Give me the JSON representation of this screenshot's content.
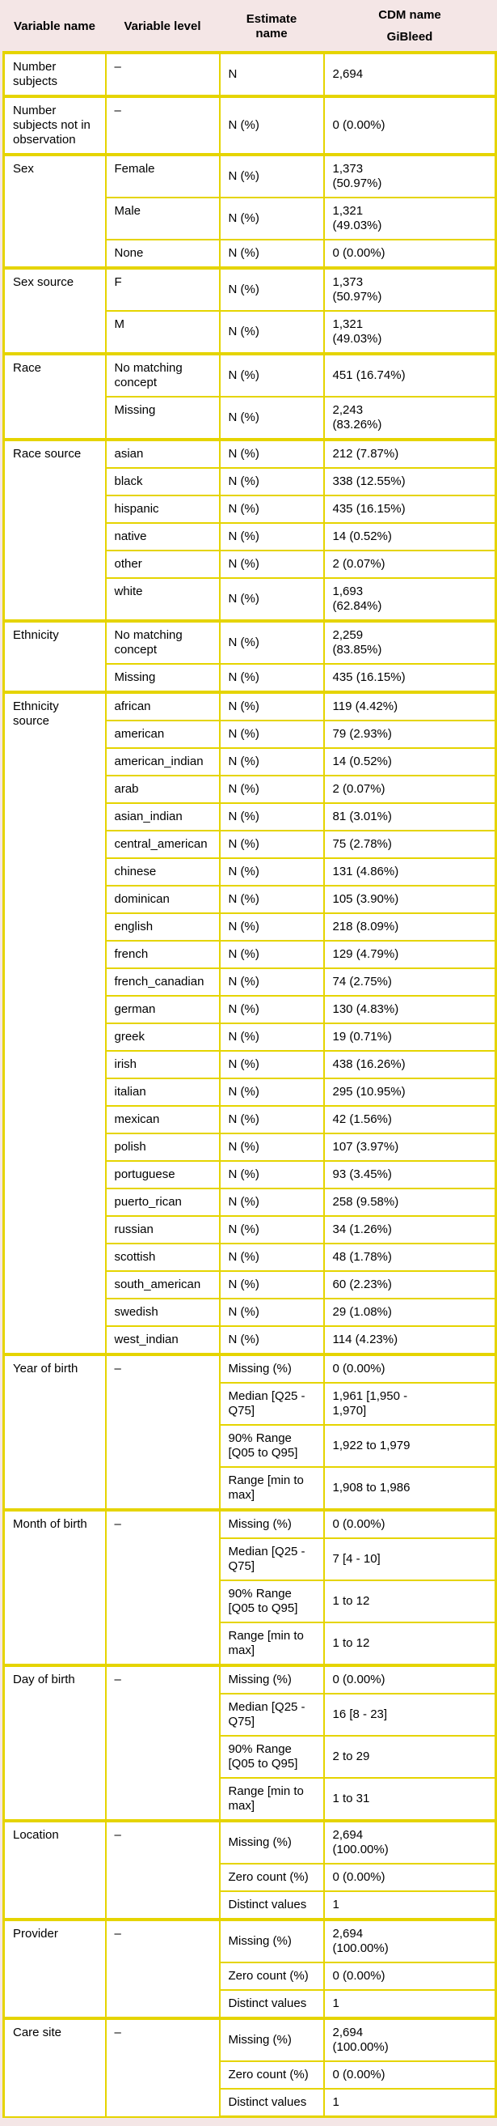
{
  "colors": {
    "border": "#e5d400",
    "page_bg": "#f4e6e6",
    "cell_bg": "#ffffff",
    "text": "#000000"
  },
  "header": {
    "variable_name": "Variable name",
    "variable_level": "Variable level",
    "estimate_name_line1": "Estimate",
    "estimate_name_line2": "name",
    "cdm_name": "CDM name",
    "cdm_database": "GiBleed"
  },
  "groups": [
    {
      "variable": "Number subjects",
      "levels": [
        {
          "level": "–",
          "rows": [
            {
              "estimate": "N",
              "value": "2,694"
            }
          ]
        }
      ]
    },
    {
      "variable": "Number subjects not in observation",
      "levels": [
        {
          "level": "–",
          "rows": [
            {
              "estimate": "N (%)",
              "value": "0 (0.00%)"
            }
          ]
        }
      ]
    },
    {
      "variable": "Sex",
      "levels": [
        {
          "level": "Female",
          "rows": [
            {
              "estimate": "N (%)",
              "value": "1,373 (50.97%)"
            }
          ]
        },
        {
          "level": "Male",
          "rows": [
            {
              "estimate": "N (%)",
              "value": "1,321 (49.03%)"
            }
          ]
        },
        {
          "level": "None",
          "rows": [
            {
              "estimate": "N (%)",
              "value": "0 (0.00%)"
            }
          ]
        }
      ]
    },
    {
      "variable": "Sex source",
      "levels": [
        {
          "level": "F",
          "rows": [
            {
              "estimate": "N (%)",
              "value": "1,373 (50.97%)"
            }
          ]
        },
        {
          "level": "M",
          "rows": [
            {
              "estimate": "N (%)",
              "value": "1,321 (49.03%)"
            }
          ]
        }
      ]
    },
    {
      "variable": "Race",
      "levels": [
        {
          "level": "No matching concept",
          "rows": [
            {
              "estimate": "N (%)",
              "value": "451 (16.74%)"
            }
          ]
        },
        {
          "level": "Missing",
          "rows": [
            {
              "estimate": "N (%)",
              "value": "2,243 (83.26%)"
            }
          ]
        }
      ]
    },
    {
      "variable": "Race source",
      "levels": [
        {
          "level": "asian",
          "rows": [
            {
              "estimate": "N (%)",
              "value": "212 (7.87%)"
            }
          ]
        },
        {
          "level": "black",
          "rows": [
            {
              "estimate": "N (%)",
              "value": "338 (12.55%)"
            }
          ]
        },
        {
          "level": "hispanic",
          "rows": [
            {
              "estimate": "N (%)",
              "value": "435 (16.15%)"
            }
          ]
        },
        {
          "level": "native",
          "rows": [
            {
              "estimate": "N (%)",
              "value": "14 (0.52%)"
            }
          ]
        },
        {
          "level": "other",
          "rows": [
            {
              "estimate": "N (%)",
              "value": "2 (0.07%)"
            }
          ]
        },
        {
          "level": "white",
          "rows": [
            {
              "estimate": "N (%)",
              "value": "1,693 (62.84%)"
            }
          ]
        }
      ]
    },
    {
      "variable": "Ethnicity",
      "levels": [
        {
          "level": "No matching concept",
          "rows": [
            {
              "estimate": "N (%)",
              "value": "2,259 (83.85%)"
            }
          ]
        },
        {
          "level": "Missing",
          "rows": [
            {
              "estimate": "N (%)",
              "value": "435 (16.15%)"
            }
          ]
        }
      ]
    },
    {
      "variable": "Ethnicity source",
      "levels": [
        {
          "level": "african",
          "rows": [
            {
              "estimate": "N (%)",
              "value": "119 (4.42%)"
            }
          ]
        },
        {
          "level": "american",
          "rows": [
            {
              "estimate": "N (%)",
              "value": "79 (2.93%)"
            }
          ]
        },
        {
          "level": "american_indian",
          "rows": [
            {
              "estimate": "N (%)",
              "value": "14 (0.52%)"
            }
          ]
        },
        {
          "level": "arab",
          "rows": [
            {
              "estimate": "N (%)",
              "value": "2 (0.07%)"
            }
          ]
        },
        {
          "level": "asian_indian",
          "rows": [
            {
              "estimate": "N (%)",
              "value": "81 (3.01%)"
            }
          ]
        },
        {
          "level": "central_american",
          "rows": [
            {
              "estimate": "N (%)",
              "value": "75 (2.78%)"
            }
          ]
        },
        {
          "level": "chinese",
          "rows": [
            {
              "estimate": "N (%)",
              "value": "131 (4.86%)"
            }
          ]
        },
        {
          "level": "dominican",
          "rows": [
            {
              "estimate": "N (%)",
              "value": "105 (3.90%)"
            }
          ]
        },
        {
          "level": "english",
          "rows": [
            {
              "estimate": "N (%)",
              "value": "218 (8.09%)"
            }
          ]
        },
        {
          "level": "french",
          "rows": [
            {
              "estimate": "N (%)",
              "value": "129 (4.79%)"
            }
          ]
        },
        {
          "level": "french_canadian",
          "rows": [
            {
              "estimate": "N (%)",
              "value": "74 (2.75%)"
            }
          ]
        },
        {
          "level": "german",
          "rows": [
            {
              "estimate": "N (%)",
              "value": "130 (4.83%)"
            }
          ]
        },
        {
          "level": "greek",
          "rows": [
            {
              "estimate": "N (%)",
              "value": "19 (0.71%)"
            }
          ]
        },
        {
          "level": "irish",
          "rows": [
            {
              "estimate": "N (%)",
              "value": "438 (16.26%)"
            }
          ]
        },
        {
          "level": "italian",
          "rows": [
            {
              "estimate": "N (%)",
              "value": "295 (10.95%)"
            }
          ]
        },
        {
          "level": "mexican",
          "rows": [
            {
              "estimate": "N (%)",
              "value": "42 (1.56%)"
            }
          ]
        },
        {
          "level": "polish",
          "rows": [
            {
              "estimate": "N (%)",
              "value": "107 (3.97%)"
            }
          ]
        },
        {
          "level": "portuguese",
          "rows": [
            {
              "estimate": "N (%)",
              "value": "93 (3.45%)"
            }
          ]
        },
        {
          "level": "puerto_rican",
          "rows": [
            {
              "estimate": "N (%)",
              "value": "258 (9.58%)"
            }
          ]
        },
        {
          "level": "russian",
          "rows": [
            {
              "estimate": "N (%)",
              "value": "34 (1.26%)"
            }
          ]
        },
        {
          "level": "scottish",
          "rows": [
            {
              "estimate": "N (%)",
              "value": "48 (1.78%)"
            }
          ]
        },
        {
          "level": "south_american",
          "rows": [
            {
              "estimate": "N (%)",
              "value": "60 (2.23%)"
            }
          ]
        },
        {
          "level": "swedish",
          "rows": [
            {
              "estimate": "N (%)",
              "value": "29 (1.08%)"
            }
          ]
        },
        {
          "level": "west_indian",
          "rows": [
            {
              "estimate": "N (%)",
              "value": "114 (4.23%)"
            }
          ]
        }
      ]
    },
    {
      "variable": "Year of birth",
      "levels": [
        {
          "level": "–",
          "rows": [
            {
              "estimate": "Missing (%)",
              "value": "0 (0.00%)"
            },
            {
              "estimate": "Median [Q25 - Q75]",
              "value": "1,961 [1,950 - 1,970]"
            },
            {
              "estimate": "90% Range [Q05 to Q95]",
              "value": "1,922 to 1,979"
            },
            {
              "estimate": "Range [min to max]",
              "value": "1,908 to 1,986"
            }
          ]
        }
      ]
    },
    {
      "variable": "Month of birth",
      "levels": [
        {
          "level": "–",
          "rows": [
            {
              "estimate": "Missing (%)",
              "value": "0 (0.00%)"
            },
            {
              "estimate": "Median [Q25 - Q75]",
              "value": "7 [4 - 10]"
            },
            {
              "estimate": "90% Range [Q05 to Q95]",
              "value": "1 to 12"
            },
            {
              "estimate": "Range [min to max]",
              "value": "1 to 12"
            }
          ]
        }
      ]
    },
    {
      "variable": "Day of birth",
      "levels": [
        {
          "level": "–",
          "rows": [
            {
              "estimate": "Missing (%)",
              "value": "0 (0.00%)"
            },
            {
              "estimate": "Median [Q25 - Q75]",
              "value": "16 [8 - 23]"
            },
            {
              "estimate": "90% Range [Q05 to Q95]",
              "value": "2 to 29"
            },
            {
              "estimate": "Range [min to max]",
              "value": "1 to 31"
            }
          ]
        }
      ]
    },
    {
      "variable": "Location",
      "levels": [
        {
          "level": "–",
          "rows": [
            {
              "estimate": "Missing (%)",
              "value": "2,694 (100.00%)"
            },
            {
              "estimate": "Zero count (%)",
              "value": "0 (0.00%)"
            },
            {
              "estimate": "Distinct values",
              "value": "1"
            }
          ]
        }
      ]
    },
    {
      "variable": "Provider",
      "levels": [
        {
          "level": "–",
          "rows": [
            {
              "estimate": "Missing (%)",
              "value": "2,694 (100.00%)"
            },
            {
              "estimate": "Zero count (%)",
              "value": "0 (0.00%)"
            },
            {
              "estimate": "Distinct values",
              "value": "1"
            }
          ]
        }
      ]
    },
    {
      "variable": "Care site",
      "levels": [
        {
          "level": "–",
          "rows": [
            {
              "estimate": "Missing (%)",
              "value": "2,694 (100.00%)"
            },
            {
              "estimate": "Zero count (%)",
              "value": "0 (0.00%)"
            },
            {
              "estimate": "Distinct values",
              "value": "1"
            }
          ]
        }
      ]
    }
  ]
}
